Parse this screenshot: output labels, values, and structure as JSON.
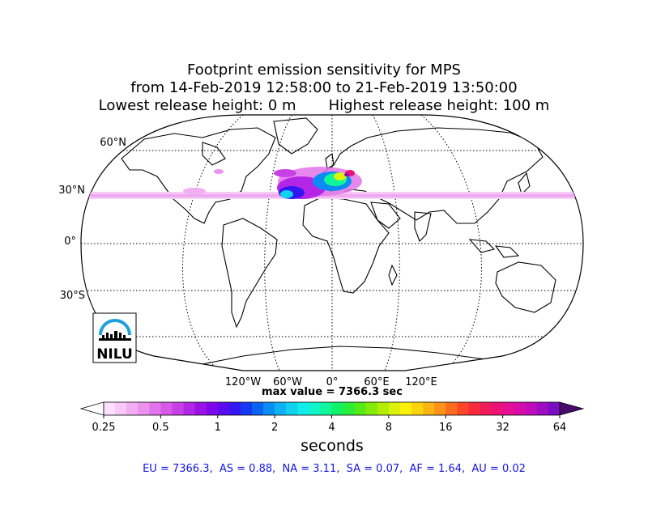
{
  "title": {
    "line1": "Footprint emission sensitivity for MPS",
    "line2": "from 14-Feb-2019 12:58:00 to 21-Feb-2019 13:50:00",
    "line3": "Lowest release height: 0 m       Highest release height: 100 m"
  },
  "map": {
    "projection": "robinson",
    "lat_labels": [
      "60°N",
      "30°N",
      "0°",
      "30°S"
    ],
    "lon_labels": [
      "120°W",
      "60°W",
      "0°",
      "60°E",
      "120°E"
    ],
    "max_value_text": "max value = 7366.3 sec",
    "logo_text": "NILU",
    "logo_color": "#1ea0dc"
  },
  "colorbar": {
    "ticks": [
      "0.25",
      "0.5",
      "1",
      "2",
      "4",
      "8",
      "16",
      "32",
      "64"
    ],
    "unit_label": "seconds",
    "colors": [
      "#fde0fd",
      "#f9c8f9",
      "#f2aef2",
      "#eb92ee",
      "#e373ea",
      "#d75ae6",
      "#c840e5",
      "#b426e6",
      "#9b12e8",
      "#7e08ea",
      "#5c0aee",
      "#3416f2",
      "#1438f4",
      "#0a62f4",
      "#0a8cf4",
      "#0cb2f2",
      "#10d2ee",
      "#12ecea",
      "#10f6c8",
      "#10f69a",
      "#12f268",
      "#2aee38",
      "#56ea14",
      "#84ea0a",
      "#b2ee08",
      "#dcf208",
      "#fcf00a",
      "#fcd40e",
      "#fcb414",
      "#fc9218",
      "#fc6c1e",
      "#fc4628",
      "#f82a3c",
      "#f21a58",
      "#ec1276",
      "#e60e94",
      "#d80caa",
      "#c00cba",
      "#9e0cc2",
      "#7a0cc6"
    ]
  },
  "stats_text": "EU = 7366.3,  AS = 0.88,  NA = 3.11,  SA = 0.07,  AF = 1.64,  AU = 0.02"
}
